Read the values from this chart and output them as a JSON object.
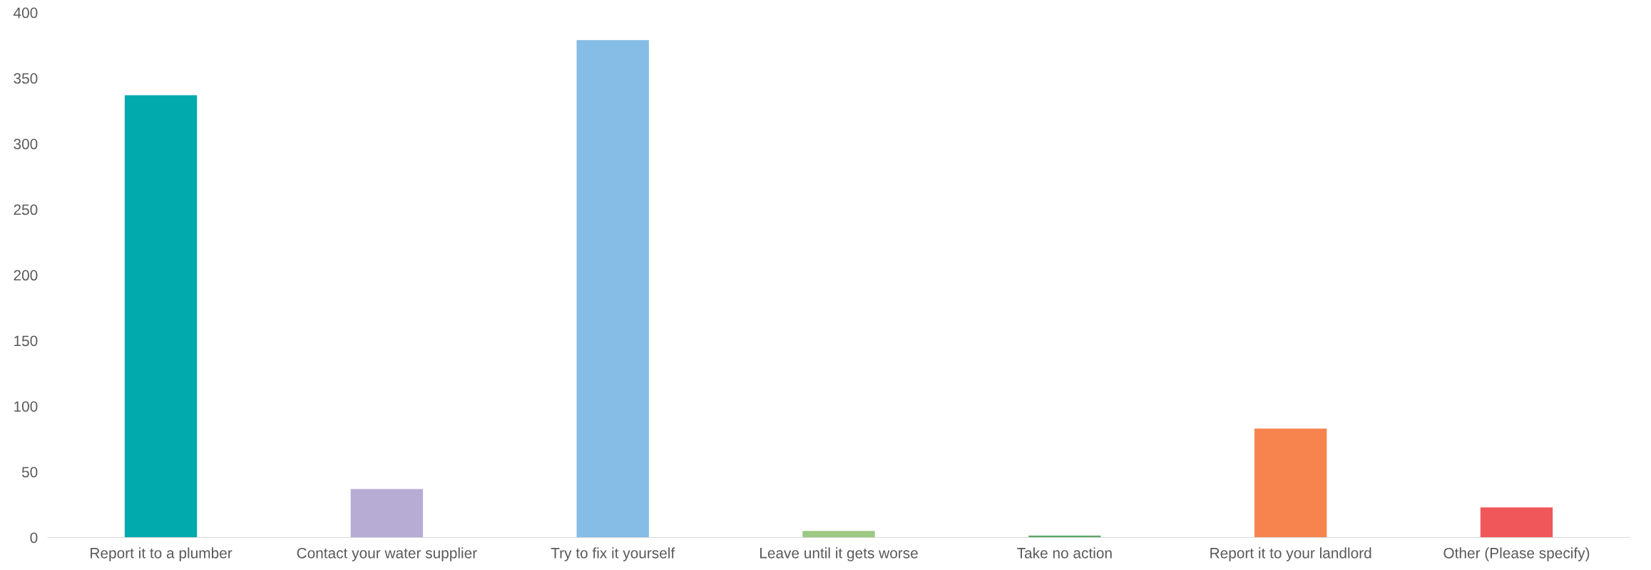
{
  "chart_data": {
    "type": "bar",
    "categories": [
      "Report it to a plumber",
      "Contact your water supplier",
      "Try to fix it yourself",
      "Leave until it gets worse",
      "Take no action",
      "Report it to your landlord",
      "Other (Please specify)"
    ],
    "values": [
      337,
      37,
      379,
      5,
      1.5,
      83,
      23
    ],
    "colors": [
      "#00aaad",
      "#b7acd4",
      "#85bde6",
      "#9bc882",
      "#5ba867",
      "#f7844f",
      "#f0575a"
    ],
    "ylim": [
      0,
      400
    ],
    "yticks": [
      0,
      50,
      100,
      150,
      200,
      250,
      300,
      350,
      400
    ],
    "grid": false,
    "legend": false
  }
}
